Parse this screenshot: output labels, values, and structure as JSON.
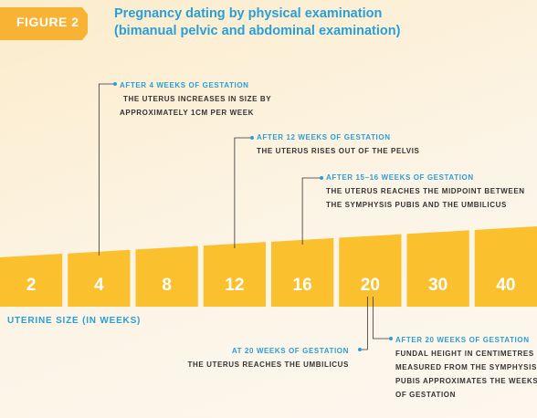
{
  "figure_label": "FIGURE 2",
  "title_line1": "Pregnancy dating by physical examination",
  "title_line2": "(bimanual pelvic and abdominal examination)",
  "colors": {
    "bar": "#fbc02d",
    "accent": "#2a9fd6",
    "tag": "#f8b334",
    "text": "#333333"
  },
  "chart_data": {
    "type": "bar",
    "categories": [
      "2",
      "4",
      "8",
      "12",
      "16",
      "20",
      "30",
      "40"
    ],
    "xlabel": "UTERINE SIZE (IN WEEKS)"
  },
  "annotations": [
    {
      "heading": "AFTER 4 WEEKS OF GESTATION",
      "lines": [
        "THE UTERUS INCREASES IN SIZE BY",
        "APPROXIMATELY 1CM PER WEEK"
      ]
    },
    {
      "heading": "AFTER 12 WEEKS OF GESTATION",
      "lines": [
        "THE UTERUS RISES OUT OF THE PELVIS"
      ]
    },
    {
      "heading": "AFTER 15–16 WEEKS OF GESTATION",
      "lines": [
        "THE UTERUS REACHES THE MIDPOINT BETWEEN",
        "THE SYMPHYSIS PUBIS AND THE UMBILICUS"
      ]
    },
    {
      "heading": "AT 20 WEEKS OF GESTATION",
      "lines": [
        "THE UTERUS REACHES THE UMBILICUS"
      ]
    },
    {
      "heading": "AFTER 20 WEEKS OF GESTATION",
      "lines": [
        "FUNDAL HEIGHT IN CENTIMETRES",
        "MEASURED FROM THE SYMPHYSIS",
        "PUBIS APPROXIMATES THE WEEKS",
        "OF GESTATION"
      ]
    }
  ]
}
